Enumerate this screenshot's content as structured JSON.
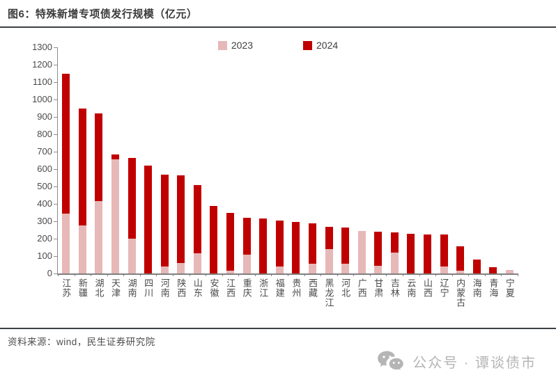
{
  "header": {
    "title": "图6：特殊新增专项债发行规模（亿元）"
  },
  "chart_data": {
    "type": "bar",
    "stacked": true,
    "title": "特殊新增专项债发行规模（亿元）",
    "xlabel": "",
    "ylabel": "",
    "ylim": [
      0,
      1300
    ],
    "ytick_step": 100,
    "yticks": [
      1300,
      1200,
      1100,
      1000,
      900,
      800,
      700,
      600,
      500,
      400,
      300,
      200,
      100,
      0
    ],
    "grid": false,
    "legend_position": "top-center",
    "categories": [
      "江苏",
      "新疆",
      "湖北",
      "天津",
      "湖南",
      "四川",
      "河南",
      "陕西",
      "山东",
      "安徽",
      "江西",
      "重庆",
      "浙江",
      "福建",
      "贵州",
      "西藏",
      "黑龙江",
      "河北",
      "广西",
      "甘肃",
      "吉林",
      "云南",
      "山西",
      "辽宁",
      "内蒙古",
      "海南",
      "青海",
      "宁夏"
    ],
    "series": [
      {
        "name": "2023",
        "color": "#E6B8B7",
        "values": [
          345,
          275,
          415,
          655,
          200,
          0,
          40,
          60,
          115,
          0,
          15,
          110,
          0,
          40,
          0,
          55,
          140,
          55,
          245,
          45,
          120,
          0,
          0,
          40,
          15,
          0,
          0,
          20
        ]
      },
      {
        "name": "2024",
        "color": "#C00000",
        "values": [
          805,
          675,
          505,
          30,
          465,
          620,
          530,
          505,
          395,
          390,
          335,
          210,
          315,
          265,
          295,
          235,
          130,
          210,
          0,
          195,
          115,
          230,
          225,
          185,
          140,
          80,
          35,
          0
        ]
      }
    ]
  },
  "source": {
    "text": "资料来源：wind，民生证券研究院"
  },
  "watermark": {
    "icon": "wechat-icon",
    "text": "公众号 · 谭谈债市"
  },
  "colors": {
    "accent_red": "#C00000",
    "accent_pink": "#E6B8B7",
    "axis": "#808080",
    "text": "#4a4a4a"
  }
}
